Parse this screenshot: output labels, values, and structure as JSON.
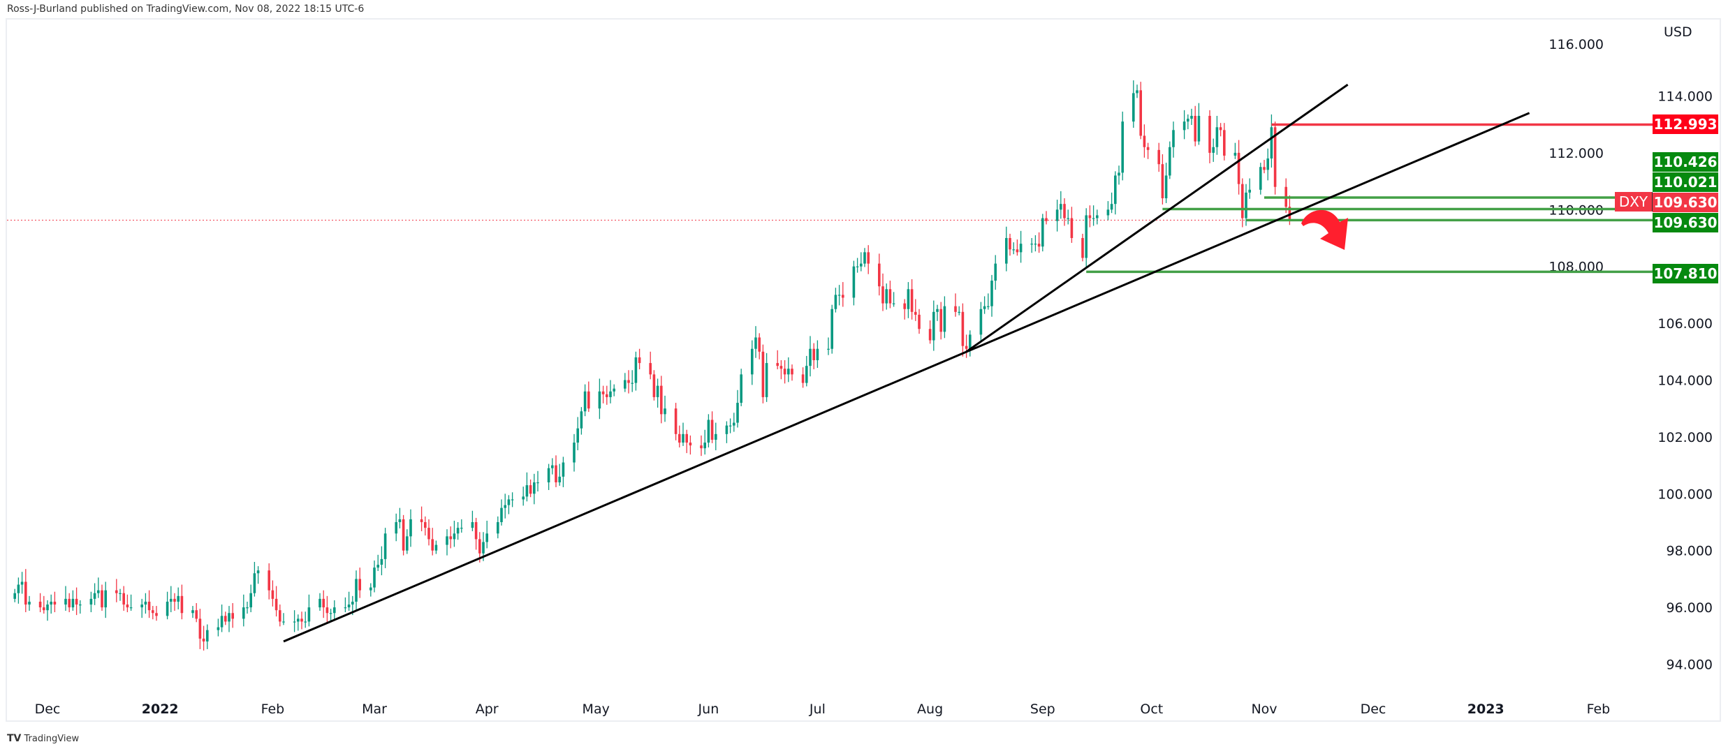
{
  "header": "Ross-J-Burland published on TradingView.com, Nov 08, 2022 18:15 UTC-6",
  "footer": {
    "logo_mark": "TV",
    "logo_text": "TradingView"
  },
  "colors": {
    "up": "#089981",
    "down": "#f23645",
    "support": "#43a047",
    "resistance": "#f23645",
    "label_green": "#06890f",
    "label_red": "#ff0019",
    "arrow": "#ff1f2e",
    "trend": "#000000"
  },
  "chart_data": {
    "type": "candlestick",
    "symbol": "DXY",
    "currency": "USD",
    "start_date": "2021-11-22",
    "frequency": "business-daily",
    "closes": [
      96.5,
      96.8,
      96.9,
      96.1,
      96.2,
      96.0,
      95.9,
      96.1,
      96.2,
      96.1,
      96.3,
      96.0,
      96.3,
      96.1,
      96.1,
      96.3,
      96.5,
      96.6,
      96.0,
      96.6,
      96.5,
      96.5,
      96.1,
      96.0,
      96.0,
      96.1,
      96.2,
      95.9,
      95.8,
      95.7,
      96.2,
      96.3,
      96.2,
      96.4,
      95.8,
      95.9,
      95.6,
      94.9,
      94.8,
      95.2,
      95.3,
      95.7,
      95.5,
      95.8,
      95.6,
      96.0,
      96.0,
      96.5,
      97.2,
      97.3,
      96.6,
      96.3,
      95.9,
      95.5,
      95.5,
      95.5,
      95.6,
      95.5,
      95.5,
      96.0,
      96.3,
      96.0,
      95.8,
      95.8,
      96.0,
      96.0,
      96.1,
      96.2,
      97.0,
      96.6,
      96.7,
      97.4,
      97.5,
      97.7,
      98.6,
      99.0,
      99.1,
      98.0,
      98.5,
      99.1,
      99.0,
      98.8,
      98.4,
      98.0,
      98.2,
      98.5,
      98.4,
      98.6,
      98.8,
      98.8,
      99.0,
      98.4,
      97.9,
      98.3,
      98.6,
      99.0,
      99.5,
      99.6,
      99.8,
      99.8,
      99.9,
      100.3,
      100.0,
      100.4,
      100.4,
      100.9,
      101.0,
      100.4,
      100.6,
      101.1,
      101.8,
      102.3,
      102.9,
      103.6,
      103.0,
      103.6,
      103.5,
      103.4,
      103.6,
      103.7,
      104.0,
      103.9,
      103.9,
      104.8,
      104.6,
      104.2,
      103.4,
      103.8,
      102.8,
      103.0,
      102.1,
      101.8,
      102.1,
      101.8,
      101.7,
      101.6,
      101.8,
      102.6,
      101.9,
      102.1,
      102.4,
      102.4,
      102.5,
      103.2,
      104.2,
      105.1,
      105.5,
      105.0,
      103.4,
      104.6,
      104.5,
      104.4,
      104.2,
      104.4,
      104.2,
      103.9,
      104.5,
      105.1,
      104.7,
      105.1,
      105.1,
      106.5,
      107.0,
      107.0,
      106.9,
      108.0,
      108.0,
      108.1,
      108.5,
      108.1,
      107.3,
      106.7,
      107.2,
      106.7,
      106.7,
      106.5,
      107.2,
      106.4,
      106.3,
      105.8,
      105.4,
      106.4,
      106.5,
      105.7,
      106.6,
      106.4,
      106.4,
      105.2,
      105.1,
      105.6,
      106.5,
      106.6,
      106.6,
      107.5,
      108.1,
      109.0,
      108.6,
      108.6,
      108.5,
      108.8,
      108.8,
      108.8,
      108.7,
      109.7,
      109.6,
      110.0,
      110.2,
      109.7,
      109.7,
      109.0,
      108.3,
      109.8,
      109.7,
      109.7,
      109.8,
      110.0,
      110.2,
      111.2,
      111.3,
      113.1,
      114.1,
      114.2,
      112.6,
      112.2,
      112.1,
      111.6,
      110.4,
      111.2,
      112.2,
      112.8,
      113.1,
      113.2,
      113.3,
      112.4,
      113.3,
      112.0,
      112.2,
      112.9,
      112.8,
      111.9,
      112.0,
      110.9,
      109.7,
      110.6,
      110.7,
      111.5,
      111.4,
      111.8,
      112.9,
      110.8,
      110.1,
      109.63
    ],
    "y_ticks": [
      94,
      96,
      98,
      100,
      102,
      104,
      106,
      108,
      110,
      112,
      114,
      116
    ],
    "ylim": [
      94,
      114
    ],
    "x_labels": [
      {
        "label": "Dec",
        "date": "2021-12-01"
      },
      {
        "label": "2022",
        "date": "2022-01-01"
      },
      {
        "label": "Feb",
        "date": "2022-02-01"
      },
      {
        "label": "Mar",
        "date": "2022-03-01"
      },
      {
        "label": "Apr",
        "date": "2022-04-01"
      },
      {
        "label": "May",
        "date": "2022-05-01"
      },
      {
        "label": "Jun",
        "date": "2022-06-01"
      },
      {
        "label": "Jul",
        "date": "2022-07-01"
      },
      {
        "label": "Aug",
        "date": "2022-08-01"
      },
      {
        "label": "Sep",
        "date": "2022-09-01"
      },
      {
        "label": "Oct",
        "date": "2022-10-01"
      },
      {
        "label": "Nov",
        "date": "2022-11-01"
      },
      {
        "label": "Dec",
        "date": "2022-12-01"
      },
      {
        "label": "2023",
        "date": "2023-01-01"
      },
      {
        "label": "Feb",
        "date": "2023-02-01"
      }
    ],
    "last_price": 109.63,
    "trendlines": [
      {
        "from": {
          "date": "2022-02-04",
          "price": 94.8
        },
        "to": {
          "date": "2023-01-13",
          "price": 113.4
        }
      },
      {
        "from": {
          "date": "2022-08-11",
          "price": 105.0
        },
        "to": {
          "date": "2022-11-24",
          "price": 114.4
        }
      }
    ],
    "levels": [
      {
        "price": 112.993,
        "from": "2022-11-03",
        "kind": "resistance",
        "label": "112.993"
      },
      {
        "price": 110.426,
        "from": "2022-11-01",
        "kind": "support",
        "label": "110.426"
      },
      {
        "price": 110.021,
        "from": "2022-10-04",
        "kind": "support",
        "label": "110.021"
      },
      {
        "price": 109.63,
        "from": "2022-10-27",
        "kind": "support",
        "label": "109.630"
      },
      {
        "price": 107.81,
        "from": "2022-09-13",
        "kind": "support",
        "label": "107.810"
      }
    ],
    "annotation": "bearish-arrow"
  }
}
